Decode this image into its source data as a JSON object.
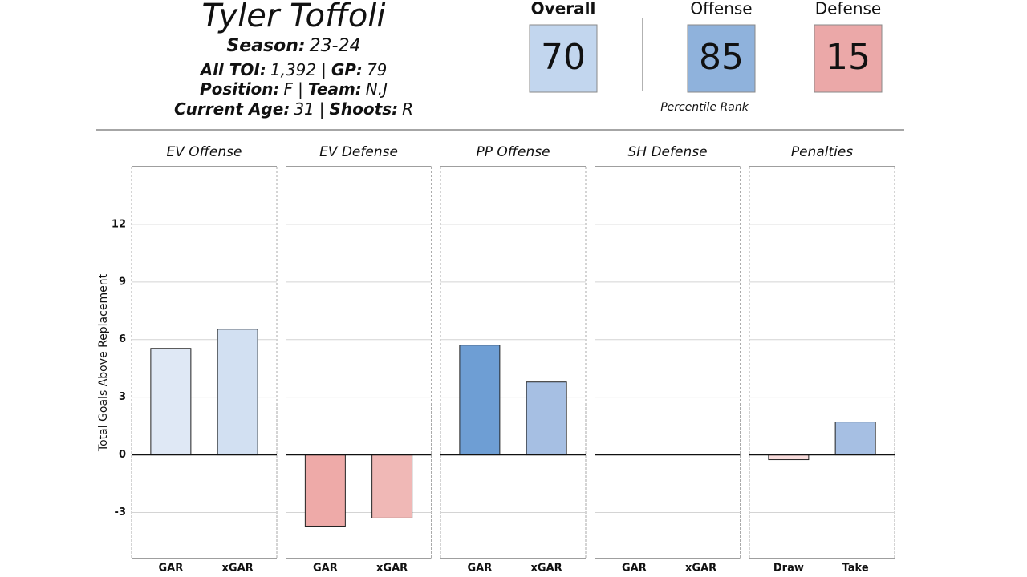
{
  "header": {
    "name": "Tyler Toffoli",
    "separator": "|",
    "lines": [
      [
        {
          "label": "Season:",
          "value": "23-24"
        }
      ],
      [
        {
          "label": "All TOI:",
          "value": "1,392"
        },
        {
          "label": "GP:",
          "value": "79"
        }
      ],
      [
        {
          "label": "Position:",
          "value": "F"
        },
        {
          "label": "Team:",
          "value": "N.J"
        }
      ],
      [
        {
          "label": "Current Age:",
          "value": "31"
        },
        {
          "label": "Shoots:",
          "value": "R"
        }
      ]
    ]
  },
  "ranks": {
    "note": "Percentile Rank",
    "items": [
      {
        "label": "Overall",
        "value": 70,
        "color": "#c2d6ee"
      },
      {
        "label": "Offense",
        "value": 85,
        "color": "#8fb2dc"
      },
      {
        "label": "Defense",
        "value": 15,
        "color": "#eba8a8"
      }
    ]
  },
  "chart_data": [
    {
      "type": "bar",
      "title": "EV Offense",
      "y_label": "Total Goals Above Replacement",
      "categories": [
        "GAR",
        "xGAR"
      ],
      "values": [
        5.54,
        6.54
      ],
      "colors": [
        "#dfe8f5",
        "#d2e0f2"
      ],
      "ylim": [
        -5.4,
        15
      ],
      "yticks": [
        -3,
        0,
        3,
        6,
        9,
        12
      ],
      "grid": true
    },
    {
      "type": "bar",
      "title": "EV Defense",
      "categories": [
        "GAR",
        "xGAR"
      ],
      "values": [
        -3.71,
        -3.29
      ],
      "colors": [
        "#eeaaa8",
        "#f0b8b6"
      ],
      "ylim": [
        -5.4,
        15
      ],
      "yticks": [
        -3,
        0,
        3,
        6,
        9,
        12
      ],
      "grid": true
    },
    {
      "type": "bar",
      "title": "PP Offense",
      "categories": [
        "GAR",
        "xGAR"
      ],
      "values": [
        5.71,
        3.79
      ],
      "colors": [
        "#6e9ed4",
        "#a6bfe3"
      ],
      "ylim": [
        -5.4,
        15
      ],
      "yticks": [
        -3,
        0,
        3,
        6,
        9,
        12
      ],
      "grid": true
    },
    {
      "type": "bar",
      "title": "SH Defense",
      "categories": [
        "GAR",
        "xGAR"
      ],
      "values": [
        0,
        0
      ],
      "colors": [
        "#ffffff",
        "#ffffff"
      ],
      "ylim": [
        -5.4,
        15
      ],
      "yticks": [
        -3,
        0,
        3,
        6,
        9,
        12
      ],
      "grid": true
    },
    {
      "type": "bar",
      "title": "Penalties",
      "categories": [
        "Draw",
        "Take"
      ],
      "values": [
        -0.25,
        1.71
      ],
      "colors": [
        "#f8dcdc",
        "#a6bfe3"
      ],
      "ylim": [
        -5.4,
        15
      ],
      "yticks": [
        -3,
        0,
        3,
        6,
        9,
        12
      ],
      "grid": true
    }
  ]
}
